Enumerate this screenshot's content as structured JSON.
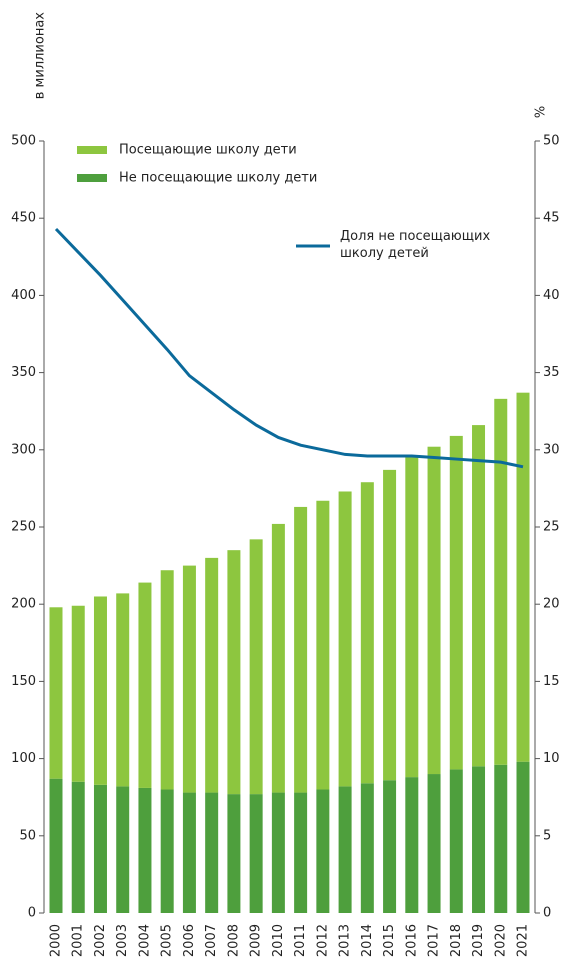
{
  "chart_data": {
    "type": "bar",
    "y_label": "в миллионах",
    "y2_label": "%",
    "categories": [
      "2000",
      "2001",
      "2002",
      "2003",
      "2004",
      "2005",
      "2006",
      "2007",
      "2008",
      "2009",
      "2010",
      "2011",
      "2012",
      "2013",
      "2014",
      "2015",
      "2016",
      "2017",
      "2018",
      "2019",
      "2020",
      "2021"
    ],
    "series": [
      {
        "name": "Посещающие школу дети",
        "color": "#8dc63f",
        "values": [
          111,
          114,
          122,
          125,
          133,
          142,
          147,
          152,
          158,
          165,
          174,
          185,
          187,
          191,
          195,
          201,
          208,
          212,
          216,
          221,
          237,
          239
        ]
      },
      {
        "name": "Не посещающие школу дети",
        "color": "#4e9f3d",
        "values": [
          87,
          85,
          83,
          82,
          81,
          80,
          78,
          78,
          77,
          77,
          78,
          78,
          80,
          82,
          84,
          86,
          88,
          90,
          93,
          95,
          96,
          98
        ]
      },
      {
        "name": "Доля не посещающих школу детей",
        "type": "line",
        "axis": "y2",
        "color": "#0b6a9b",
        "values": [
          44.3,
          42.8,
          41.3,
          39.7,
          38.1,
          36.5,
          34.8,
          33.7,
          32.6,
          31.6,
          30.8,
          30.3,
          30.0,
          29.7,
          29.6,
          29.6,
          29.6,
          29.5,
          29.4,
          29.3,
          29.2,
          28.9
        ]
      }
    ],
    "ylim": [
      0,
      500
    ],
    "yticks": [
      0,
      50,
      100,
      150,
      200,
      250,
      300,
      350,
      400,
      450,
      500
    ],
    "y2lim": [
      0,
      50
    ],
    "y2ticks": [
      0,
      5,
      10,
      15,
      20,
      25,
      30,
      35,
      40,
      45,
      50
    ]
  }
}
